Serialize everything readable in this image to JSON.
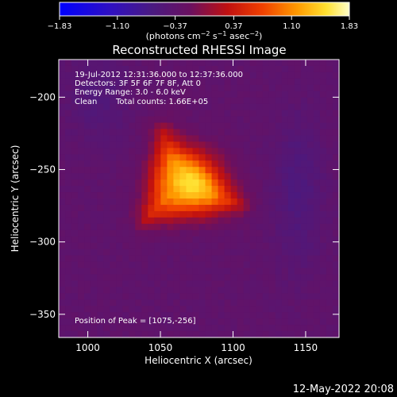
{
  "chart_data": {
    "type": "heatmap",
    "title": "Reconstructed RHESSI Image",
    "xlabel": "Heliocentric X (arcsec)",
    "ylabel": "Heliocentric Y (arcsec)",
    "xlim": [
      980,
      1173
    ],
    "ylim": [
      -366,
      -174
    ],
    "x_ticks": [
      1000,
      1050,
      1100,
      1150
    ],
    "x_tick_labels": [
      "1000",
      "1050",
      "1100",
      "1150"
    ],
    "y_ticks": [
      -200,
      -250,
      -300,
      -350
    ],
    "y_tick_labels": [
      "−200",
      "−250",
      "−300",
      "−350"
    ],
    "colorbar": {
      "ticks": [
        -1.83,
        -1.1,
        -0.37,
        0.37,
        1.1,
        1.83
      ],
      "tick_labels": [
        "−1.83",
        "−1.10",
        "−0.37",
        "0.37",
        "1.10",
        "1.83"
      ],
      "range": [
        -1.83,
        1.83
      ],
      "colormap": "blue-purple-red-orange-yellow-white",
      "label_main": "(photons cm",
      "label_exp1": "−2",
      "label_mid1": " s",
      "label_exp2": "−1",
      "label_mid2": " asec",
      "label_exp3": "−2",
      "label_end": ")"
    },
    "annotations": {
      "time_range": "19-Jul-2012 12:31:36.000 to 12:37:36.000",
      "detectors": "Detectors: 3F 5F 6F 7F 8F, Att 0",
      "energy": "Energy Range: 3.0 - 6.0 keV",
      "method": "Clean",
      "counts": "Total counts: 1.66E+05",
      "peak": "Position of Peak = [1075,-256]"
    },
    "peak_position": [
      1075,
      -256
    ],
    "source_vertices": [
      [
        1052,
        -225
      ],
      [
        1103,
        -274
      ],
      [
        1040,
        -284
      ]
    ],
    "peak_value": 1.83,
    "background_value": -0.3
  },
  "footer": {
    "date": "12-May-2022 20:08"
  }
}
